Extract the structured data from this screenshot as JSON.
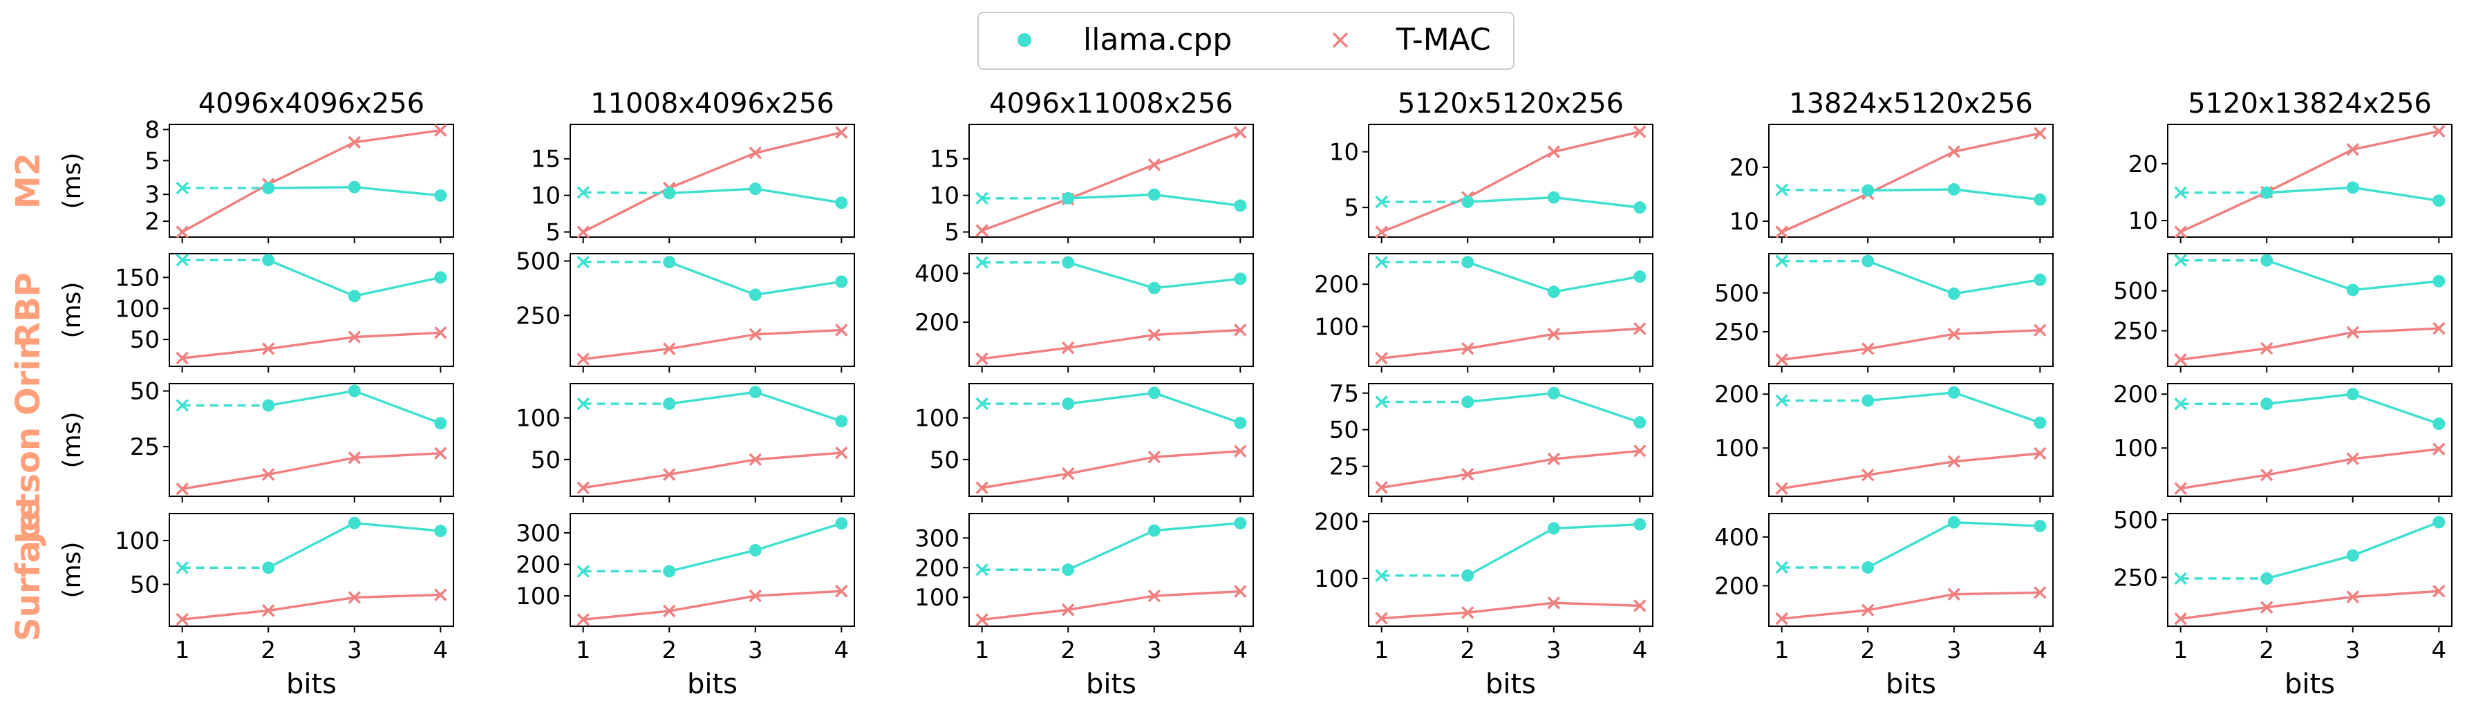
{
  "legend": {
    "entries": [
      {
        "label": "llama.cpp",
        "marker": "dot",
        "color": "#40e0d0"
      },
      {
        "label": "T-MAC",
        "marker": "x",
        "color": "#f08080"
      }
    ],
    "placement": "top-center"
  },
  "colors": {
    "llama": "#40e0d0",
    "tmac": "#f08080",
    "device_label": "#ffa07a"
  },
  "x_label": "bits",
  "y_unit": "(ms)",
  "devices": [
    "M2",
    "RBP",
    "Jetson Orin",
    "Surface"
  ],
  "shapes": [
    "4096x4096x256",
    "11008x4096x256",
    "4096x11008x256",
    "5120x5120x256",
    "13824x5120x256",
    "5120x13824x256"
  ],
  "chart_data": {
    "type": "line",
    "layout": "grid 4 rows (devices) x 6 columns (matrix shapes)",
    "x": [
      1,
      2,
      3,
      4
    ],
    "x_ticks": [
      "1",
      "2",
      "3",
      "4"
    ],
    "note": "llama.cpp at 1 bit is drawn with an x marker and a dashed segment to 2 bits",
    "panels": [
      {
        "device": "M2",
        "shape": "4096x4096x256",
        "ylim": [
          1.7,
          8
        ],
        "yticks": [
          2,
          3,
          5,
          8
        ],
        "yscale": "log",
        "series": [
          {
            "name": "llama.cpp",
            "values": [
              3.3,
              3.3,
              3.35,
              2.95
            ]
          },
          {
            "name": "T-MAC",
            "values": [
              1.7,
              3.5,
              6.6,
              7.9
            ]
          }
        ]
      },
      {
        "device": "M2",
        "shape": "11008x4096x256",
        "ylim": [
          5,
          19
        ],
        "yticks": [
          5,
          10,
          15
        ],
        "series": [
          {
            "name": "llama.cpp",
            "values": [
              10.4,
              10.3,
              10.9,
              9.0
            ]
          },
          {
            "name": "T-MAC",
            "values": [
              5.0,
              11.0,
              15.8,
              18.6
            ]
          }
        ]
      },
      {
        "device": "M2",
        "shape": "4096x11008x256",
        "ylim": [
          5,
          19
        ],
        "yticks": [
          5,
          10,
          15
        ],
        "series": [
          {
            "name": "llama.cpp",
            "values": [
              9.6,
              9.6,
              10.1,
              8.6
            ]
          },
          {
            "name": "T-MAC",
            "values": [
              5.2,
              9.5,
              14.2,
              18.6
            ]
          }
        ]
      },
      {
        "device": "M2",
        "shape": "5120x5120x256",
        "ylim": [
          2.8,
          12
        ],
        "yticks": [
          5,
          10
        ],
        "series": [
          {
            "name": "llama.cpp",
            "values": [
              5.5,
              5.5,
              5.9,
              5.0
            ]
          },
          {
            "name": "T-MAC",
            "values": [
              2.8,
              5.9,
              10.0,
              11.8
            ]
          }
        ]
      },
      {
        "device": "M2",
        "shape": "13824x5120x256",
        "ylim": [
          8,
          27
        ],
        "yticks": [
          10,
          20
        ],
        "series": [
          {
            "name": "llama.cpp",
            "values": [
              15.8,
              15.7,
              15.9,
              14.0
            ]
          },
          {
            "name": "T-MAC",
            "values": [
              8.0,
              15.1,
              22.9,
              26.3
            ]
          }
        ]
      },
      {
        "device": "M2",
        "shape": "5120x13824x256",
        "ylim": [
          8,
          26
        ],
        "yticks": [
          10,
          20
        ],
        "series": [
          {
            "name": "llama.cpp",
            "values": [
              14.9,
              14.9,
              15.8,
              13.5
            ]
          },
          {
            "name": "T-MAC",
            "values": [
              8.0,
              15.0,
              22.5,
              25.7
            ]
          }
        ]
      },
      {
        "device": "RBP",
        "shape": "4096x4096x256",
        "ylim": [
          15,
          180
        ],
        "yticks": [
          50,
          100,
          150
        ],
        "series": [
          {
            "name": "llama.cpp",
            "values": [
              178,
              178,
              120,
              150
            ]
          },
          {
            "name": "T-MAC",
            "values": [
              20,
              35,
              54,
              61
            ]
          }
        ]
      },
      {
        "device": "RBP",
        "shape": "11008x4096x256",
        "ylim": [
          40,
          510
        ],
        "yticks": [
          250,
          500
        ],
        "series": [
          {
            "name": "llama.cpp",
            "values": [
              495,
              495,
              345,
              405
            ]
          },
          {
            "name": "T-MAC",
            "values": [
              50,
              97,
              163,
              183
            ]
          }
        ]
      },
      {
        "device": "RBP",
        "shape": "4096x11008x256",
        "ylim": [
          40,
          460
        ],
        "yticks": [
          200,
          400
        ],
        "series": [
          {
            "name": "llama.cpp",
            "values": [
              445,
              445,
              340,
              378
            ]
          },
          {
            "name": "T-MAC",
            "values": [
              50,
              95,
              148,
              168
            ]
          }
        ]
      },
      {
        "device": "RBP",
        "shape": "5120x5120x256",
        "ylim": [
          18,
          260
        ],
        "yticks": [
          100,
          200
        ],
        "series": [
          {
            "name": "llama.cpp",
            "values": [
              252,
              252,
              182,
              218
            ]
          },
          {
            "name": "T-MAC",
            "values": [
              25,
              48,
              82,
              95
            ]
          }
        ]
      },
      {
        "device": "RBP",
        "shape": "13824x5120x256",
        "ylim": [
          60,
          720
        ],
        "yticks": [
          250,
          500
        ],
        "series": [
          {
            "name": "llama.cpp",
            "values": [
              705,
              705,
              495,
              585
            ]
          },
          {
            "name": "T-MAC",
            "values": [
              70,
              140,
              235,
              260
            ]
          }
        ]
      },
      {
        "device": "RBP",
        "shape": "5120x13824x256",
        "ylim": [
          60,
          700
        ],
        "yticks": [
          250,
          500
        ],
        "series": [
          {
            "name": "llama.cpp",
            "values": [
              690,
              690,
              505,
              560
            ]
          },
          {
            "name": "T-MAC",
            "values": [
              70,
              140,
              240,
              265
            ]
          }
        ]
      },
      {
        "device": "Jetson Orin",
        "shape": "4096x4096x256",
        "ylim": [
          5,
          51
        ],
        "yticks": [
          25,
          50
        ],
        "series": [
          {
            "name": "llama.cpp",
            "values": [
              43.5,
              43.5,
              50,
              35.5
            ]
          },
          {
            "name": "T-MAC",
            "values": [
              6,
              12.5,
              20,
              22
            ]
          }
        ]
      },
      {
        "device": "Jetson Orin",
        "shape": "11008x4096x256",
        "ylim": [
          12,
          135
        ],
        "yticks": [
          50,
          100
        ],
        "series": [
          {
            "name": "llama.cpp",
            "values": [
              117,
              117,
              131,
              96
            ]
          },
          {
            "name": "T-MAC",
            "values": [
              16,
              32,
              50,
              58
            ]
          }
        ]
      },
      {
        "device": "Jetson Orin",
        "shape": "4096x11008x256",
        "ylim": [
          12,
          135
        ],
        "yticks": [
          50,
          100
        ],
        "series": [
          {
            "name": "llama.cpp",
            "values": [
              117,
              117,
              130,
              94
            ]
          },
          {
            "name": "T-MAC",
            "values": [
              16,
              33,
              53,
              60
            ]
          }
        ]
      },
      {
        "device": "Jetson Orin",
        "shape": "5120x5120x256",
        "ylim": [
          8,
          78
        ],
        "yticks": [
          25,
          50,
          75
        ],
        "series": [
          {
            "name": "llama.cpp",
            "values": [
              69,
              69,
              75,
              55
            ]
          },
          {
            "name": "T-MAC",
            "values": [
              10.5,
              19.5,
              30,
              35.5
            ]
          }
        ]
      },
      {
        "device": "Jetson Orin",
        "shape": "13824x5120x256",
        "ylim": [
          20,
          210
        ],
        "yticks": [
          100,
          200
        ],
        "series": [
          {
            "name": "llama.cpp",
            "values": [
              188,
              188,
              203,
              147
            ]
          },
          {
            "name": "T-MAC",
            "values": [
              25,
              50,
              75,
              90
            ]
          }
        ]
      },
      {
        "device": "Jetson Orin",
        "shape": "5120x13824x256",
        "ylim": [
          20,
          210
        ],
        "yticks": [
          100,
          200
        ],
        "series": [
          {
            "name": "llama.cpp",
            "values": [
              182,
              182,
              200,
              145
            ]
          },
          {
            "name": "T-MAC",
            "values": [
              25,
              50,
              80,
              98
            ]
          }
        ]
      },
      {
        "device": "Surface",
        "shape": "4096x4096x256",
        "ylim": [
          8,
          125
        ],
        "yticks": [
          50,
          100
        ],
        "series": [
          {
            "name": "llama.cpp",
            "values": [
              69,
              69,
              120,
              111
            ]
          },
          {
            "name": "T-MAC",
            "values": [
              10,
              20,
              35,
              38
            ]
          }
        ]
      },
      {
        "device": "Surface",
        "shape": "11008x4096x256",
        "ylim": [
          20,
          345
        ],
        "yticks": [
          100,
          200,
          300
        ],
        "series": [
          {
            "name": "llama.cpp",
            "values": [
              178,
              178,
              245,
              330
            ]
          },
          {
            "name": "T-MAC",
            "values": [
              25,
              52,
              100,
              115
            ]
          }
        ]
      },
      {
        "device": "Surface",
        "shape": "4096x11008x256",
        "ylim": [
          20,
          365
        ],
        "yticks": [
          100,
          200,
          300
        ],
        "series": [
          {
            "name": "llama.cpp",
            "values": [
              193,
              193,
              325,
              350
            ]
          },
          {
            "name": "T-MAC",
            "values": [
              25,
              58,
              105,
              120
            ]
          }
        ]
      },
      {
        "device": "Surface",
        "shape": "5120x5120x256",
        "ylim": [
          25,
          205
        ],
        "yticks": [
          100,
          200
        ],
        "series": [
          {
            "name": "llama.cpp",
            "values": [
              105,
              105,
              188,
              195
            ]
          },
          {
            "name": "T-MAC",
            "values": [
              30,
              40,
              57,
              52
            ]
          }
        ]
      },
      {
        "device": "Surface",
        "shape": "13824x5120x256",
        "ylim": [
          55,
          475
        ],
        "yticks": [
          200,
          400
        ],
        "series": [
          {
            "name": "llama.cpp",
            "values": [
              275,
              275,
              460,
              445
            ]
          },
          {
            "name": "T-MAC",
            "values": [
              65,
              100,
              165,
              172
            ]
          }
        ]
      },
      {
        "device": "Surface",
        "shape": "5120x13824x256",
        "ylim": [
          60,
          505
        ],
        "yticks": [
          250,
          500
        ],
        "series": [
          {
            "name": "llama.cpp",
            "values": [
              245,
              245,
              345,
              490
            ]
          },
          {
            "name": "T-MAC",
            "values": [
              70,
              120,
              165,
              190
            ]
          }
        ]
      }
    ]
  }
}
